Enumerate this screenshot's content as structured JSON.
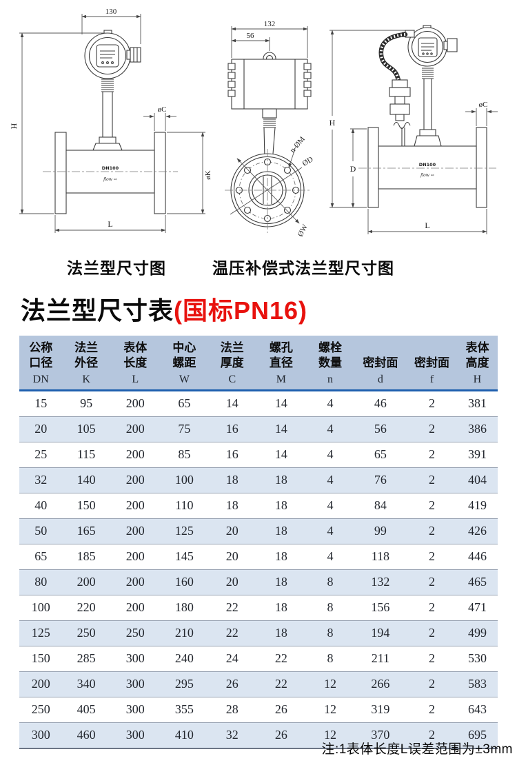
{
  "diagrams": {
    "left": {
      "caption": "法兰型尺寸图",
      "top_width": "130",
      "height_label": "H",
      "flange_thickness_label": "øC",
      "flange_diameter_label": "øK",
      "length_label": "L",
      "body_label": "DN100",
      "flow_label": "flow ⇨"
    },
    "middle": {
      "top_width": "132",
      "offset_width": "56",
      "bolt_label": "n-ØM",
      "bore_label": "ØD",
      "bolt_circle_label": "ØW"
    },
    "right": {
      "caption": "温压补偿式法兰型尺寸图",
      "height_label": "H",
      "body_height_label": "D",
      "flange_thickness_label": "øC",
      "length_label": "L",
      "body_label": "DN100",
      "flow_label": "flow ⇨"
    }
  },
  "title": {
    "text": "法兰型尺寸表",
    "highlight": "(国标PN16)"
  },
  "table": {
    "columns": [
      {
        "zh": "公称\n口径",
        "letter": "DN"
      },
      {
        "zh": "法兰\n外径",
        "letter": "K"
      },
      {
        "zh": "表体\n长度",
        "letter": "L"
      },
      {
        "zh": "中心\n螺距",
        "letter": "W"
      },
      {
        "zh": "法兰\n厚度",
        "letter": "C"
      },
      {
        "zh": "螺孔\n直径",
        "letter": "M"
      },
      {
        "zh": "螺栓\n数量",
        "letter": "n"
      },
      {
        "zh": "密封面",
        "letter": "d"
      },
      {
        "zh": "密封面",
        "letter": "f"
      },
      {
        "zh": "表体\n高度",
        "letter": "H"
      }
    ],
    "rows": [
      [
        15,
        95,
        200,
        65,
        14,
        14,
        4,
        46,
        2,
        381
      ],
      [
        20,
        105,
        200,
        75,
        16,
        14,
        4,
        56,
        2,
        386
      ],
      [
        25,
        115,
        200,
        85,
        16,
        14,
        4,
        65,
        2,
        391
      ],
      [
        32,
        140,
        200,
        100,
        18,
        18,
        4,
        76,
        2,
        404
      ],
      [
        40,
        150,
        200,
        110,
        18,
        18,
        4,
        84,
        2,
        419
      ],
      [
        50,
        165,
        200,
        125,
        20,
        18,
        4,
        99,
        2,
        426
      ],
      [
        65,
        185,
        200,
        145,
        20,
        18,
        4,
        118,
        2,
        446
      ],
      [
        80,
        200,
        200,
        160,
        20,
        18,
        8,
        132,
        2,
        465
      ],
      [
        100,
        220,
        200,
        180,
        22,
        18,
        8,
        156,
        2,
        471
      ],
      [
        125,
        250,
        250,
        210,
        22,
        18,
        8,
        194,
        2,
        499
      ],
      [
        150,
        285,
        300,
        240,
        24,
        22,
        8,
        211,
        2,
        530
      ],
      [
        200,
        340,
        300,
        295,
        26,
        22,
        12,
        266,
        2,
        583
      ],
      [
        250,
        405,
        300,
        355,
        28,
        26,
        12,
        319,
        2,
        643
      ],
      [
        300,
        460,
        300,
        410,
        32,
        26,
        12,
        370,
        2,
        695
      ]
    ]
  },
  "note": "注:1表体长度L误差范围为±3mm",
  "colors": {
    "header_bg": "#b5c6dd",
    "header_rule": "#1e5fae",
    "row_alt_bg": "#dbe5f1",
    "accent_red": "#e8120e"
  }
}
